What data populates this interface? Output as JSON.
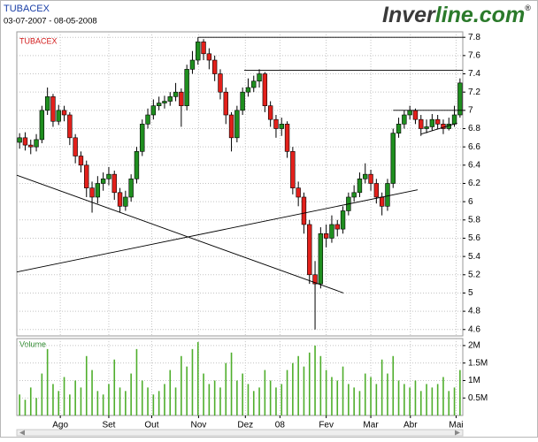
{
  "chart_data": {
    "type": "candlestick",
    "title": "TUBACEX",
    "subtitle": "03-07-2007 - 08-05-2008",
    "logo_a": "Inver",
    "logo_b": "line.com",
    "logo_mark": "®",
    "panel_label": "TUBACEX",
    "volume_label": "Volume",
    "up_color": "#1f8f1f",
    "down_color": "#e3201b",
    "volume_color": "#4fae2c",
    "line_color": "#000000",
    "grid": true,
    "xlim": [
      -0.5,
      79.5
    ],
    "xticks": [
      {
        "value": 7.3,
        "label": "Ago"
      },
      {
        "value": 16,
        "label": "Set"
      },
      {
        "value": 23.7,
        "label": "Out"
      },
      {
        "value": 32.1,
        "label": "Nov"
      },
      {
        "value": 40.5,
        "label": "Dez"
      },
      {
        "value": 46.7,
        "label": "08"
      },
      {
        "value": 55,
        "label": "Fev"
      },
      {
        "value": 63,
        "label": "Mar"
      },
      {
        "value": 70.1,
        "label": "Abr"
      },
      {
        "value": 78.3,
        "label": "Mai"
      }
    ],
    "ylim": [
      4.53,
      7.86
    ],
    "yticks": [
      7.8,
      7.6,
      7.4,
      7.2,
      7,
      6.8,
      6.6,
      6.4,
      6.2,
      6,
      5.8,
      5.6,
      5.4,
      5.2,
      5,
      4.8,
      4.6
    ],
    "y2lim": [
      0,
      2200000
    ],
    "y2ticks": [
      {
        "value": 2000000,
        "label": "2M"
      },
      {
        "value": 1500000,
        "label": "1.5M"
      },
      {
        "value": 1000000,
        "label": "1M"
      },
      {
        "value": 500000,
        "label": "0.5M"
      }
    ],
    "ohlc": [
      [
        6.65,
        6.75,
        6.58,
        6.7
      ],
      [
        6.7,
        6.76,
        6.56,
        6.62
      ],
      [
        6.62,
        6.68,
        6.52,
        6.6
      ],
      [
        6.6,
        6.74,
        6.55,
        6.68
      ],
      [
        6.68,
        7.05,
        6.64,
        7.0
      ],
      [
        7.0,
        7.25,
        6.95,
        7.15
      ],
      [
        7.15,
        7.18,
        6.82,
        6.88
      ],
      [
        6.88,
        7.06,
        6.84,
        7.0
      ],
      [
        7.0,
        7.05,
        6.88,
        6.95
      ],
      [
        6.95,
        6.98,
        6.62,
        6.7
      ],
      [
        6.7,
        6.74,
        6.42,
        6.5
      ],
      [
        6.5,
        6.55,
        6.32,
        6.4
      ],
      [
        6.4,
        6.45,
        6.05,
        6.15
      ],
      [
        6.15,
        6.22,
        5.88,
        6.05
      ],
      [
        6.05,
        6.28,
        5.98,
        6.2
      ],
      [
        6.2,
        6.32,
        6.12,
        6.25
      ],
      [
        6.25,
        6.38,
        6.18,
        6.3
      ],
      [
        6.3,
        6.34,
        6.02,
        6.1
      ],
      [
        6.1,
        6.15,
        5.88,
        5.95
      ],
      [
        5.95,
        6.12,
        5.9,
        6.05
      ],
      [
        6.05,
        6.3,
        6.0,
        6.25
      ],
      [
        6.25,
        6.6,
        6.2,
        6.55
      ],
      [
        6.55,
        6.9,
        6.5,
        6.85
      ],
      [
        6.85,
        7.02,
        6.8,
        6.95
      ],
      [
        6.95,
        7.12,
        6.9,
        7.05
      ],
      [
        7.05,
        7.15,
        7.0,
        7.08
      ],
      [
        7.08,
        7.16,
        7.02,
        7.1
      ],
      [
        7.1,
        7.2,
        7.05,
        7.15
      ],
      [
        7.15,
        7.3,
        7.1,
        7.2
      ],
      [
        7.2,
        7.24,
        6.82,
        7.05
      ],
      [
        7.05,
        7.5,
        7.0,
        7.45
      ],
      [
        7.45,
        7.65,
        7.4,
        7.55
      ],
      [
        7.55,
        7.8,
        7.5,
        7.75
      ],
      [
        7.75,
        7.78,
        7.55,
        7.62
      ],
      [
        7.62,
        7.68,
        7.45,
        7.55
      ],
      [
        7.55,
        7.6,
        7.32,
        7.4
      ],
      [
        7.4,
        7.45,
        7.12,
        7.2
      ],
      [
        7.2,
        7.25,
        6.85,
        6.95
      ],
      [
        6.95,
        6.98,
        6.55,
        6.7
      ],
      [
        6.7,
        7.05,
        6.65,
        7.0
      ],
      [
        7.0,
        7.25,
        6.95,
        7.2
      ],
      [
        7.2,
        7.35,
        7.15,
        7.25
      ],
      [
        7.25,
        7.38,
        7.2,
        7.32
      ],
      [
        7.32,
        7.45,
        7.25,
        7.4
      ],
      [
        7.4,
        7.42,
        6.98,
        7.05
      ],
      [
        7.05,
        7.1,
        6.82,
        6.9
      ],
      [
        6.9,
        6.95,
        6.7,
        6.8
      ],
      [
        6.8,
        6.92,
        6.72,
        6.85
      ],
      [
        6.85,
        6.88,
        6.48,
        6.55
      ],
      [
        6.55,
        6.6,
        6.08,
        6.15
      ],
      [
        6.15,
        6.22,
        5.95,
        6.05
      ],
      [
        6.05,
        6.1,
        5.65,
        5.75
      ],
      [
        5.75,
        5.8,
        5.1,
        5.2
      ],
      [
        5.2,
        5.35,
        4.6,
        5.1
      ],
      [
        5.1,
        5.72,
        5.05,
        5.65
      ],
      [
        5.65,
        5.75,
        5.5,
        5.6
      ],
      [
        5.6,
        5.85,
        5.55,
        5.75
      ],
      [
        5.75,
        5.8,
        5.62,
        5.7
      ],
      [
        5.7,
        5.95,
        5.65,
        5.9
      ],
      [
        5.9,
        6.1,
        5.85,
        6.05
      ],
      [
        6.05,
        6.18,
        6.0,
        6.1
      ],
      [
        6.1,
        6.32,
        6.05,
        6.25
      ],
      [
        6.25,
        6.42,
        6.2,
        6.3
      ],
      [
        6.3,
        6.35,
        6.12,
        6.2
      ],
      [
        6.2,
        6.25,
        5.98,
        6.05
      ],
      [
        6.05,
        6.1,
        5.85,
        5.95
      ],
      [
        5.95,
        6.25,
        5.9,
        6.2
      ],
      [
        6.2,
        6.8,
        6.15,
        6.75
      ],
      [
        6.75,
        6.92,
        6.7,
        6.85
      ],
      [
        6.85,
        7.0,
        6.8,
        6.95
      ],
      [
        6.95,
        7.05,
        6.9,
        7.0
      ],
      [
        7.0,
        7.02,
        6.85,
        6.9
      ],
      [
        6.9,
        6.95,
        6.72,
        6.8
      ],
      [
        6.8,
        6.9,
        6.75,
        6.82
      ],
      [
        6.82,
        6.96,
        6.78,
        6.9
      ],
      [
        6.9,
        6.95,
        6.8,
        6.85
      ],
      [
        6.85,
        6.9,
        6.74,
        6.8
      ],
      [
        6.8,
        6.92,
        6.78,
        6.85
      ],
      [
        6.85,
        7.05,
        6.82,
        6.95
      ],
      [
        6.95,
        7.35,
        6.92,
        7.3
      ]
    ],
    "volume": [
      600000,
      450000,
      800000,
      500000,
      1200000,
      1900000,
      900000,
      700000,
      1100000,
      600000,
      1000000,
      800000,
      1700000,
      1300000,
      700000,
      600000,
      900000,
      1600000,
      800000,
      700000,
      1200000,
      1900000,
      1000000,
      800000,
      600000,
      700000,
      900000,
      1300000,
      800000,
      1700000,
      1400000,
      1900000,
      2100000,
      1200000,
      900000,
      1000000,
      800000,
      1500000,
      1800000,
      1000000,
      1200000,
      900000,
      700000,
      800000,
      1300000,
      1000000,
      800000,
      900000,
      1300000,
      1500000,
      1700000,
      1400000,
      1800000,
      2000000,
      1700000,
      1300000,
      1100000,
      1000000,
      1400000,
      900000,
      800000,
      700000,
      1200000,
      1100000,
      900000,
      1600000,
      1200000,
      1700000,
      1000000,
      900000,
      800000,
      1000000,
      700000,
      900000,
      800000,
      900000,
      1100000,
      700000,
      800000,
      1300000
    ],
    "lines": [
      {
        "x": [
          -0.5,
          58.1
        ],
        "y": [
          6.29,
          5.0
        ]
      },
      {
        "x": [
          -0.5,
          71.4
        ],
        "y": [
          5.23,
          6.13
        ]
      },
      {
        "x": [
          32,
          79.5
        ],
        "y": [
          7.8,
          7.8
        ]
      },
      {
        "x": [
          40.3,
          79.5
        ],
        "y": [
          7.44,
          7.44
        ]
      },
      {
        "x": [
          67,
          79.5
        ],
        "y": [
          7.0,
          7.0
        ]
      },
      {
        "x": [
          72,
          78.5
        ],
        "y": [
          6.74,
          6.86
        ]
      }
    ]
  }
}
